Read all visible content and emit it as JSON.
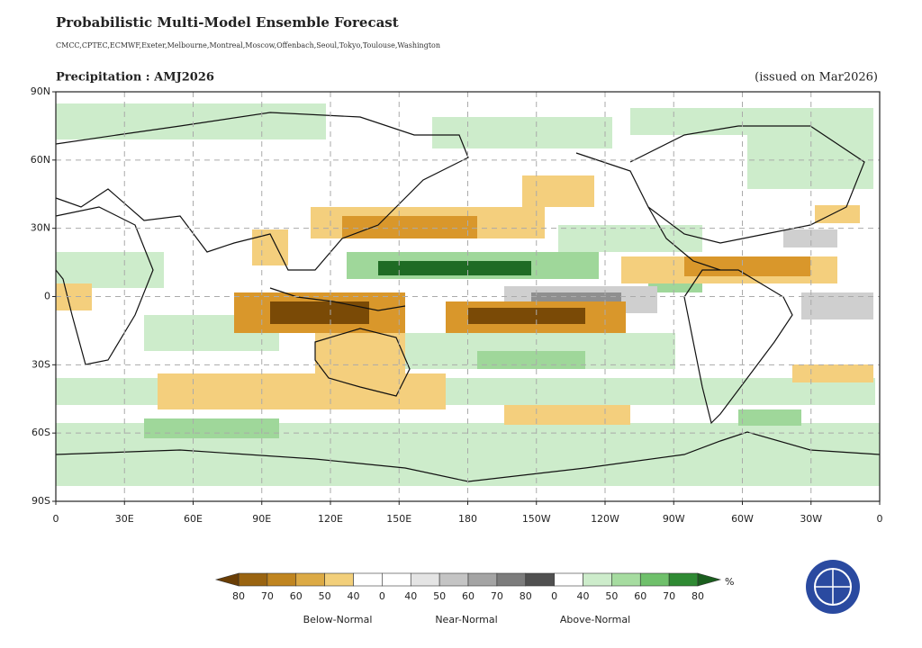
{
  "header": {
    "title": "Probabilistic Multi-Model Ensemble Forecast",
    "models": "CMCC,CPTEC,ECMWF,Exeter,Melbourne,Montreal,Moscow,Offenbach,Seoul,Tokyo,Toulouse,Washington",
    "variable": "Precipitation : AMJ2026",
    "issued": "(issued on Mar2026)"
  },
  "map": {
    "lat_labels": [
      "90N",
      "60N",
      "30N",
      "0",
      "30S",
      "60S",
      "90S"
    ],
    "lon_labels": [
      "0",
      "30E",
      "60E",
      "90E",
      "120E",
      "150E",
      "180",
      "150W",
      "120W",
      "90W",
      "60W",
      "30W",
      "0"
    ]
  },
  "legend": {
    "labels": [
      "80",
      "70",
      "60",
      "50",
      "40",
      "0",
      "40",
      "50",
      "60",
      "70",
      "80",
      "0",
      "40",
      "50",
      "60",
      "70",
      "80"
    ],
    "unit": "%",
    "categories": [
      "Below-Normal",
      "Near-Normal",
      "Above-Normal"
    ]
  }
}
